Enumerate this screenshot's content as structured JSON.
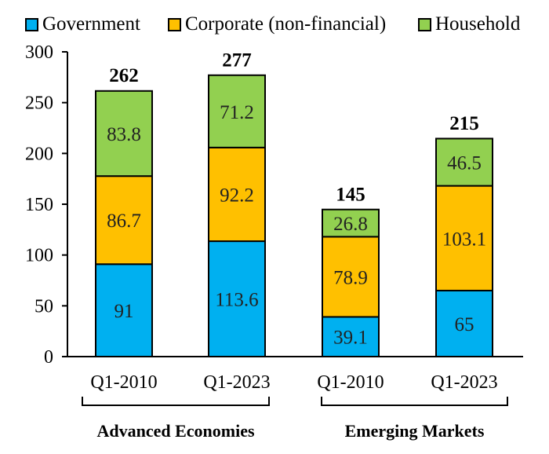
{
  "chart_data": {
    "type": "bar",
    "stacked": true,
    "legend_position": "top",
    "grid": false,
    "ylim": [
      0,
      300
    ],
    "yticks": [
      0,
      50,
      100,
      150,
      200,
      250,
      300
    ],
    "categories": [
      "Q1-2010",
      "Q1-2023",
      "Q1-2010",
      "Q1-2023"
    ],
    "groups": [
      {
        "label": "Advanced Economies",
        "categories": [
          "Q1-2010",
          "Q1-2023"
        ]
      },
      {
        "label": "Emerging Markets",
        "categories": [
          "Q1-2010",
          "Q1-2023"
        ]
      }
    ],
    "series": [
      {
        "name": "Government",
        "color": "#00b0f0",
        "values": [
          91,
          113.6,
          39.1,
          65
        ],
        "labels": [
          "91",
          "113.6",
          "39.1",
          "65"
        ]
      },
      {
        "name": "Corporate (non-financial)",
        "color": "#ffc000",
        "values": [
          86.7,
          92.2,
          78.9,
          103.1
        ],
        "labels": [
          "86.7",
          "92.2",
          "78.9",
          "103.1"
        ]
      },
      {
        "name": "Household",
        "color": "#92d050",
        "values": [
          83.8,
          71.2,
          26.8,
          46.5
        ],
        "labels": [
          "83.8",
          "71.2",
          "26.8",
          "46.5"
        ]
      }
    ],
    "totals": [
      262,
      277,
      145,
      215
    ],
    "total_labels": [
      "262",
      "277",
      "145",
      "215"
    ]
  }
}
